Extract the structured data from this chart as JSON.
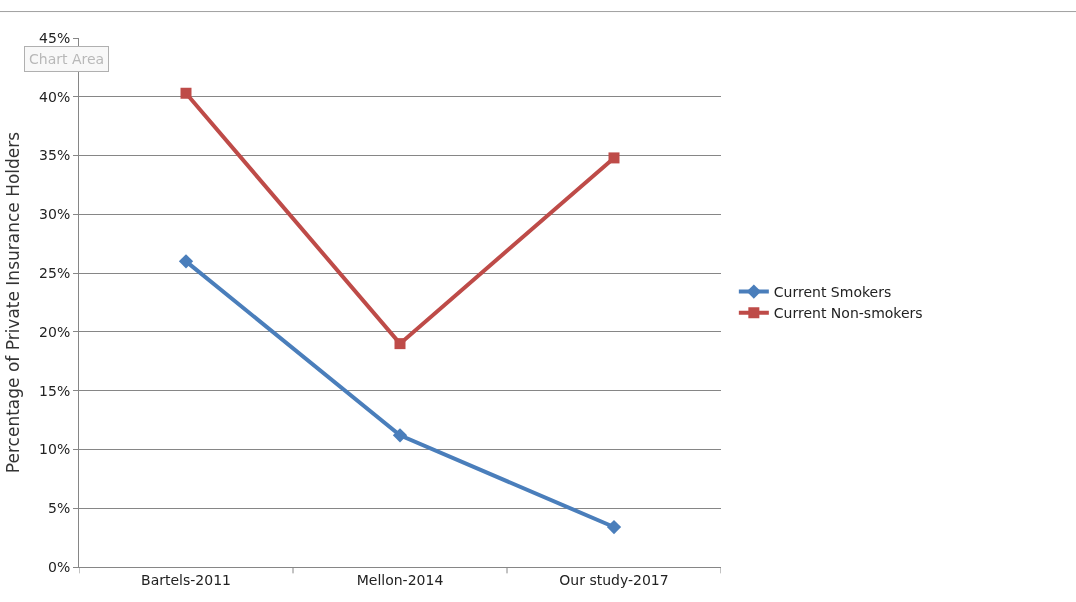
{
  "chart_data": {
    "type": "line",
    "ylabel": "Percentage of Private Insurance Holders",
    "categories": [
      "Bartels-2011",
      "Mellon-2014",
      "Our study-2017"
    ],
    "series": [
      {
        "name": "Current Smokers",
        "color": "#4a7ebb",
        "marker": "diamond",
        "values": [
          26.0,
          11.2,
          3.4
        ]
      },
      {
        "name": "Current Non-smokers",
        "color": "#be4b48",
        "marker": "square",
        "values": [
          40.3,
          19.0,
          34.8
        ]
      }
    ],
    "ylim": [
      0,
      45
    ],
    "yticks": [
      {
        "value": 0,
        "label": "0%"
      },
      {
        "value": 5,
        "label": "5%"
      },
      {
        "value": 10,
        "label": "10%"
      },
      {
        "value": 15,
        "label": "15%"
      },
      {
        "value": 20,
        "label": "20%"
      },
      {
        "value": 25,
        "label": "25%"
      },
      {
        "value": 30,
        "label": "30%"
      },
      {
        "value": 35,
        "label": "35%"
      },
      {
        "value": 40,
        "label": "40%"
      },
      {
        "value": 45,
        "label": "45%"
      }
    ],
    "grid": "y",
    "legend": "right",
    "line_style": "solid",
    "annotations": [
      "Chart Area"
    ]
  }
}
